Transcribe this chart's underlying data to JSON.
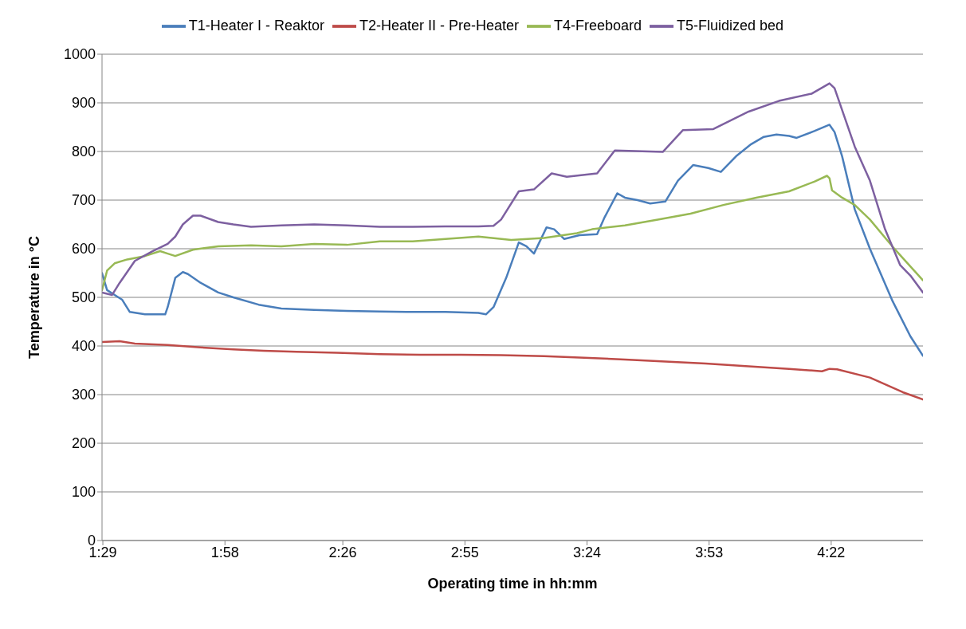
{
  "chart_data": {
    "type": "line",
    "xlabel": "Operating time in hh:mm",
    "ylabel": "Temperature in °C",
    "xlim": [
      1.48,
      4.73
    ],
    "xticks": [
      {
        "value": 1.4833,
        "label": "1:29"
      },
      {
        "value": 1.9667,
        "label": "1:58"
      },
      {
        "value": 2.4333,
        "label": "2:26"
      },
      {
        "value": 2.9167,
        "label": "2:55"
      },
      {
        "value": 3.4,
        "label": "3:24"
      },
      {
        "value": 3.8833,
        "label": "3:53"
      },
      {
        "value": 4.3667,
        "label": "4:22"
      }
    ],
    "ylim": [
      0,
      1000
    ],
    "yticks": [
      0,
      100,
      200,
      300,
      400,
      500,
      600,
      700,
      800,
      900,
      1000
    ],
    "grid": "y",
    "legend": "top",
    "marker": "none",
    "line_style": "solid",
    "series": [
      {
        "name": "T1-Heater I - Reaktor",
        "color": "#4a7ebb",
        "x": [
          1.48,
          1.5,
          1.53,
          1.56,
          1.59,
          1.65,
          1.73,
          1.74,
          1.77,
          1.8,
          1.82,
          1.87,
          1.94,
          2.0,
          2.1,
          2.19,
          2.32,
          2.45,
          2.58,
          2.71,
          2.84,
          2.97,
          3.0,
          3.03,
          3.08,
          3.13,
          3.16,
          3.19,
          3.24,
          3.27,
          3.31,
          3.37,
          3.44,
          3.47,
          3.52,
          3.55,
          3.6,
          3.65,
          3.71,
          3.76,
          3.82,
          3.88,
          3.93,
          3.99,
          4.05,
          4.1,
          4.15,
          4.2,
          4.23,
          4.3,
          4.36,
          4.38,
          4.41,
          4.46,
          4.52,
          4.61,
          4.68,
          4.73
        ],
        "values": [
          550,
          515,
          505,
          495,
          470,
          465,
          465,
          480,
          540,
          552,
          548,
          530,
          510,
          500,
          485,
          477,
          474,
          472,
          471,
          470,
          470,
          468,
          465,
          480,
          540,
          613,
          605,
          590,
          644,
          640,
          620,
          628,
          630,
          665,
          714,
          705,
          700,
          693,
          697,
          740,
          772,
          766,
          758,
          790,
          815,
          830,
          835,
          832,
          828,
          842,
          855,
          840,
          790,
          681,
          600,
          492,
          420,
          380
        ]
      },
      {
        "name": "T2-Heater II - Pre-Heater",
        "color": "#be4b48",
        "x": [
          1.48,
          1.55,
          1.61,
          1.74,
          1.87,
          2.0,
          2.12,
          2.25,
          2.41,
          2.58,
          2.74,
          2.9,
          3.06,
          3.23,
          3.39,
          3.55,
          3.71,
          3.87,
          4.04,
          4.2,
          4.33,
          4.36,
          4.39,
          4.52,
          4.65,
          4.73
        ],
        "values": [
          408,
          410,
          405,
          402,
          397,
          393,
          390,
          388,
          386,
          383,
          382,
          382,
          381,
          379,
          376,
          372,
          368,
          364,
          358,
          353,
          348,
          353,
          352,
          335,
          305,
          290
        ]
      },
      {
        "name": "T4-Freeboard",
        "color": "#98b954",
        "x": [
          1.48,
          1.5,
          1.53,
          1.58,
          1.65,
          1.71,
          1.74,
          1.77,
          1.84,
          1.94,
          2.07,
          2.19,
          2.32,
          2.45,
          2.58,
          2.71,
          2.84,
          2.97,
          3.1,
          3.23,
          3.36,
          3.42,
          3.55,
          3.68,
          3.81,
          3.94,
          4.07,
          4.2,
          4.3,
          4.35,
          4.36,
          4.37,
          4.41,
          4.46,
          4.52,
          4.61,
          4.73
        ],
        "values": [
          515,
          555,
          570,
          578,
          585,
          595,
          590,
          585,
          598,
          605,
          607,
          605,
          610,
          608,
          615,
          615,
          620,
          625,
          618,
          622,
          632,
          640,
          648,
          660,
          672,
          690,
          705,
          718,
          738,
          750,
          745,
          720,
          705,
          690,
          660,
          604,
          535
        ]
      },
      {
        "name": "T5-Fluidized bed",
        "color": "#7d60a0",
        "x": [
          1.48,
          1.52,
          1.55,
          1.61,
          1.68,
          1.74,
          1.77,
          1.8,
          1.84,
          1.87,
          1.94,
          2.0,
          2.07,
          2.19,
          2.32,
          2.45,
          2.58,
          2.71,
          2.84,
          2.97,
          3.03,
          3.06,
          3.13,
          3.19,
          3.26,
          3.32,
          3.44,
          3.51,
          3.7,
          3.78,
          3.9,
          4.04,
          4.16,
          4.29,
          4.36,
          4.38,
          4.46,
          4.52,
          4.58,
          4.64,
          4.68,
          4.73
        ],
        "values": [
          510,
          505,
          530,
          575,
          595,
          610,
          625,
          650,
          668,
          668,
          655,
          650,
          645,
          648,
          650,
          648,
          645,
          645,
          646,
          646,
          647,
          660,
          718,
          722,
          755,
          748,
          755,
          802,
          799,
          844,
          846,
          882,
          904,
          919,
          940,
          930,
          810,
          740,
          640,
          566,
          545,
          510
        ]
      }
    ]
  }
}
